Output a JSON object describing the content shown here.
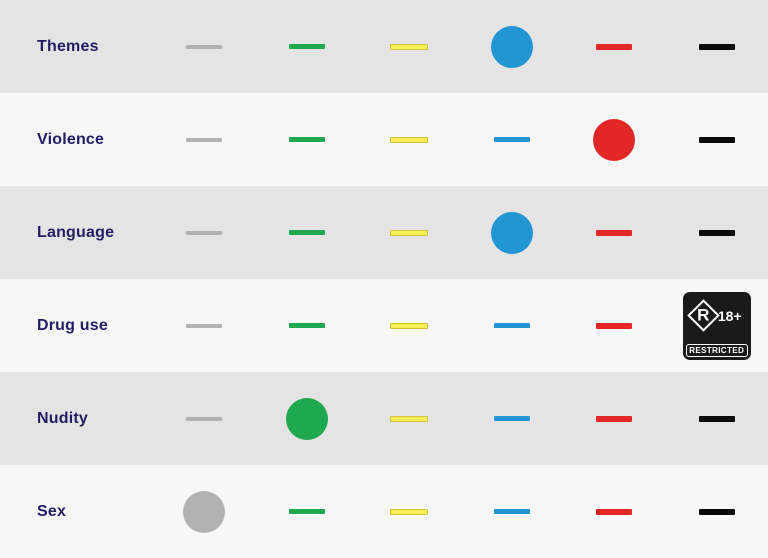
{
  "page": {
    "row_background_alt": "#e4e4e4",
    "row_background_base": "#f8f8f8",
    "label_color": "#221d62"
  },
  "table": {
    "levels": [
      {
        "id": "gray",
        "color": "#b2b2b2"
      },
      {
        "id": "green",
        "color": "#1fa84d"
      },
      {
        "id": "yellow",
        "color": "#f7ef58",
        "border_color": "#d2c33c"
      },
      {
        "id": "blue",
        "color": "#2196d3"
      },
      {
        "id": "red",
        "color": "#e32726"
      },
      {
        "id": "black",
        "color": "#0a0a0a"
      }
    ],
    "rows": [
      {
        "label": "Themes",
        "selected": 3,
        "badge_level": null
      },
      {
        "label": "Violence",
        "selected": 4,
        "badge_level": null
      },
      {
        "label": "Language",
        "selected": 3,
        "badge_level": null
      },
      {
        "label": "Drug use",
        "selected": null,
        "badge_level": 5
      },
      {
        "label": "Nudity",
        "selected": 1,
        "badge_level": null
      },
      {
        "label": "Sex",
        "selected": 0,
        "badge_level": null
      }
    ]
  },
  "badge": {
    "letter": "R",
    "age": "18+",
    "caption": "RESTRICTED",
    "background": "#1a1a1a",
    "foreground": "#ffffff"
  }
}
